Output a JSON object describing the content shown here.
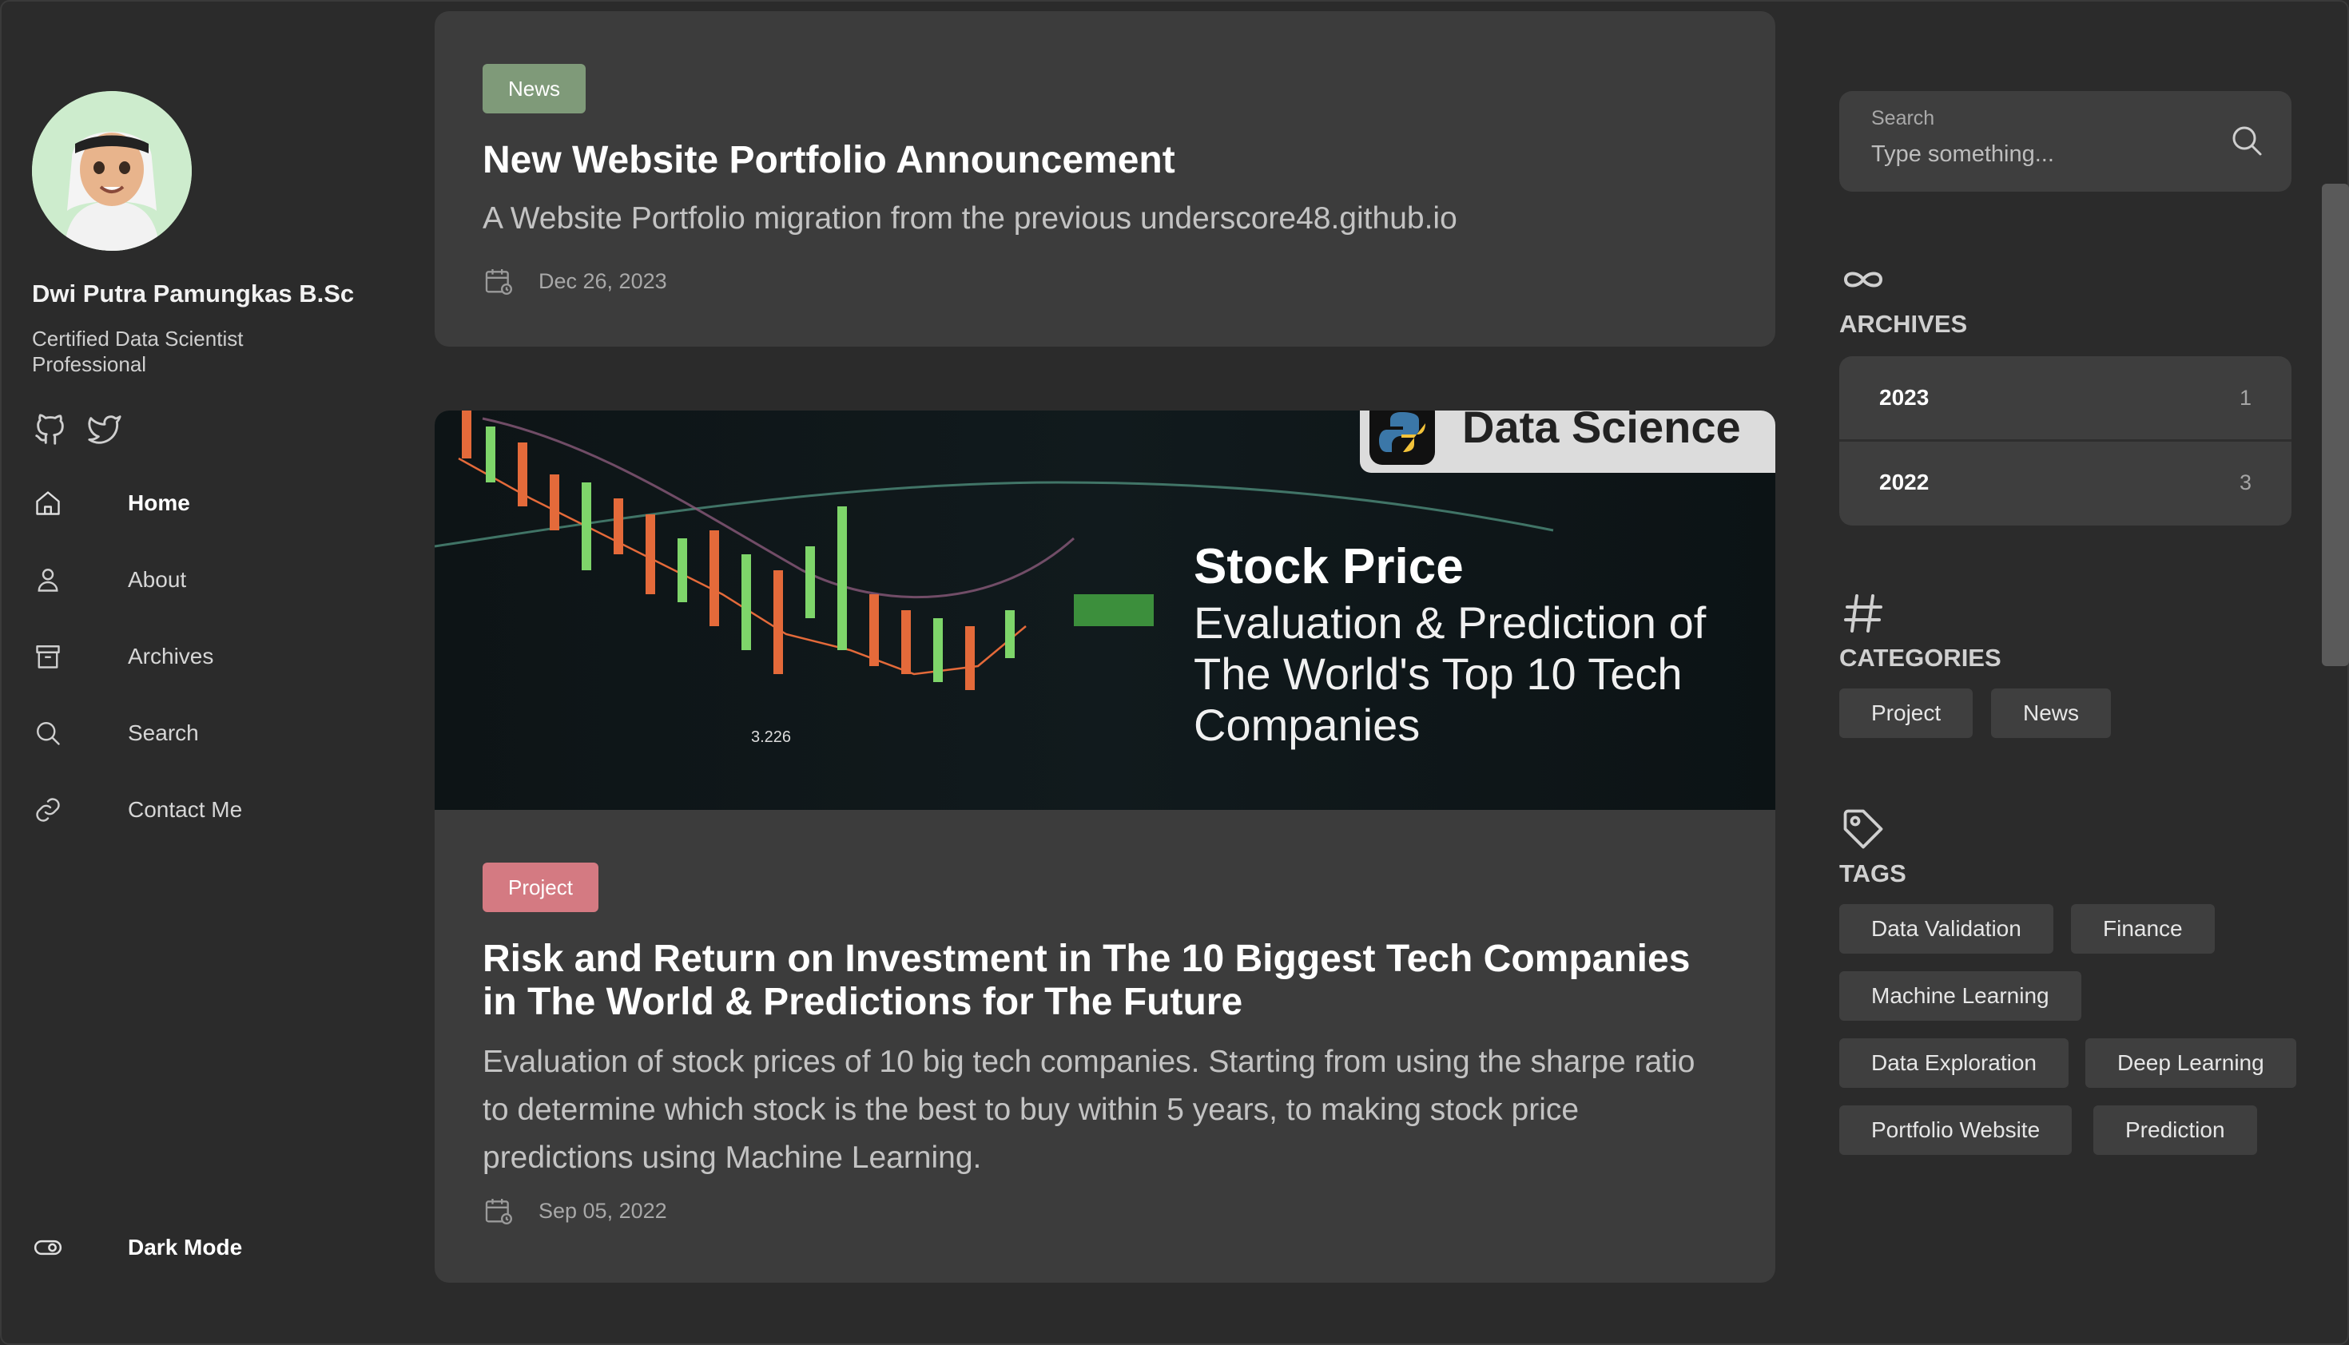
{
  "profile": {
    "name": "Dwi Putra Pamungkas B.Sc",
    "role": "Certified Data Scientist Professional"
  },
  "social": {
    "github_icon": "github-icon",
    "twitter_icon": "twitter-icon"
  },
  "nav": {
    "items": [
      {
        "label": "Home",
        "icon": "home-icon",
        "active": true
      },
      {
        "label": "About",
        "icon": "user-icon"
      },
      {
        "label": "Archives",
        "icon": "archive-box-icon"
      },
      {
        "label": "Search",
        "icon": "search-icon"
      },
      {
        "label": "Contact Me",
        "icon": "link-icon"
      }
    ],
    "dark_mode_label": "Dark Mode"
  },
  "posts": [
    {
      "category": "News",
      "title": "New Website Portfolio Announcement",
      "description": "A Website Portfolio migration from the previous underscore48.github.io",
      "date": "Dec 26, 2023"
    },
    {
      "category": "Project",
      "title": "Risk and Return on Investment in The 10 Biggest Tech Companies in The World & Predictions for The Future",
      "description": "Evaluation of stock prices of 10 big tech companies. Starting from using the sharpe ratio to determine which stock is the best to buy within 5 years, to making stock price predictions using Machine Learning.",
      "date": "Sep 05, 2022",
      "image": {
        "banner": "Data Science",
        "headline": "Stock Price",
        "subtitle": "Evaluation & Prediction of The World's Top 10 Tech Companies",
        "price_label": "3.226"
      }
    }
  ],
  "search": {
    "label": "Search",
    "placeholder": "Type something..."
  },
  "archives": {
    "title": "ARCHIVES",
    "items": [
      {
        "year": "2023",
        "count": "1"
      },
      {
        "year": "2022",
        "count": "3"
      }
    ]
  },
  "categories": {
    "title": "CATEGORIES",
    "items": [
      "Project",
      "News"
    ]
  },
  "tags": {
    "title": "TAGS",
    "items": [
      "Data Validation",
      "Finance",
      "Machine Learning",
      "Data Exploration",
      "Deep Learning",
      "Portfolio Website",
      "Prediction"
    ]
  },
  "colors": {
    "news_badge": "#7f9a79",
    "project_badge": "#d47a82",
    "background": "#2b2b2b",
    "card": "#3c3c3c"
  }
}
